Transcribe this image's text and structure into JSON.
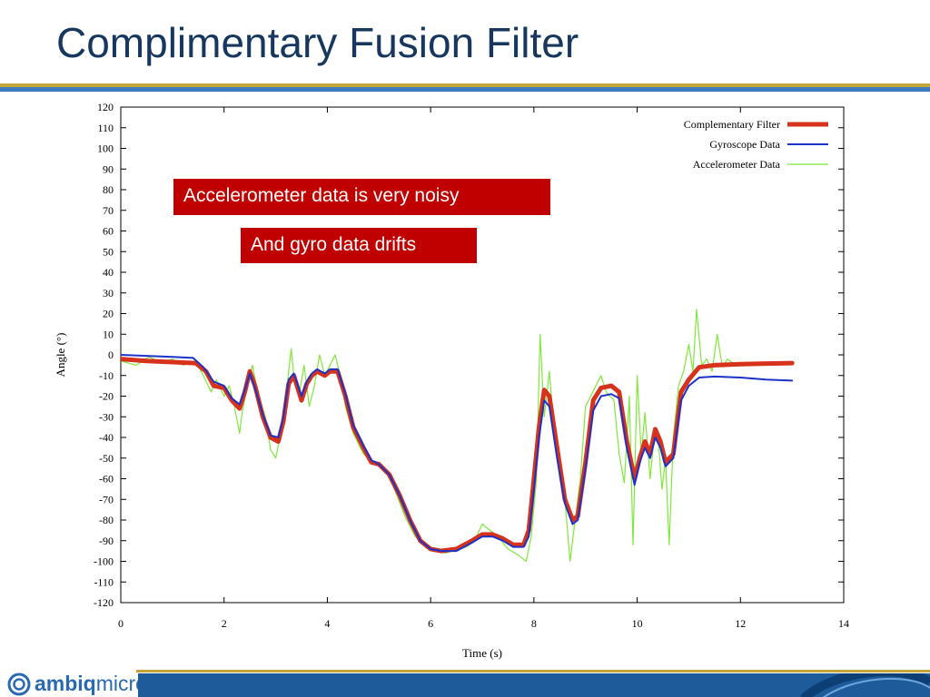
{
  "slide": {
    "title": "Complimentary Fusion Filter",
    "callouts": [
      "Accelerometer data is very noisy",
      "And gyro data drifts"
    ],
    "logo_bold": "ambiq",
    "logo_light": "micro",
    "accent_color": "#17375e",
    "callout_color": "#c00000"
  },
  "chart_data": {
    "type": "line",
    "title": "",
    "xlabel": "Time (s)",
    "ylabel": "Angle (°)",
    "xlim": [
      0,
      14
    ],
    "ylim": [
      -120,
      120
    ],
    "x_ticks": [
      0,
      2,
      4,
      6,
      8,
      10,
      12,
      14
    ],
    "y_ticks": [
      120,
      110,
      100,
      90,
      80,
      70,
      60,
      50,
      40,
      30,
      20,
      10,
      0,
      -10,
      -20,
      -30,
      -40,
      -50,
      -60,
      -70,
      -80,
      -90,
      -100,
      -110,
      -120
    ],
    "legend_position": "top-right",
    "grid": false,
    "series": [
      {
        "name": "Complementary Filter",
        "color": "#d6321c",
        "width": 5,
        "x": [
          0,
          0.5,
          1.0,
          1.45,
          1.65,
          1.8,
          2.0,
          2.15,
          2.3,
          2.4,
          2.5,
          2.6,
          2.75,
          2.9,
          3.05,
          3.15,
          3.25,
          3.35,
          3.5,
          3.6,
          3.7,
          3.8,
          3.95,
          4.05,
          4.2,
          4.35,
          4.5,
          4.7,
          4.85,
          5.0,
          5.2,
          5.4,
          5.6,
          5.8,
          6.0,
          6.2,
          6.5,
          6.8,
          7.0,
          7.2,
          7.4,
          7.6,
          7.8,
          7.9,
          8.0,
          8.1,
          8.2,
          8.3,
          8.45,
          8.6,
          8.75,
          8.85,
          9.0,
          9.15,
          9.3,
          9.5,
          9.65,
          9.8,
          9.95,
          10.05,
          10.15,
          10.25,
          10.35,
          10.45,
          10.55,
          10.7,
          10.85,
          11.0,
          11.2,
          11.5,
          12.0,
          12.5,
          13.0
        ],
        "y": [
          -2,
          -3,
          -3.5,
          -4,
          -8,
          -15,
          -16,
          -22,
          -26,
          -18,
          -8,
          -15,
          -30,
          -40,
          -42,
          -32,
          -14,
          -10,
          -22,
          -14,
          -10,
          -8,
          -10,
          -8,
          -8,
          -20,
          -35,
          -45,
          -52,
          -53,
          -58,
          -68,
          -80,
          -90,
          -94,
          -95,
          -94,
          -90,
          -87,
          -87,
          -89,
          -92,
          -92,
          -85,
          -60,
          -35,
          -17,
          -20,
          -45,
          -70,
          -80,
          -78,
          -52,
          -22,
          -16,
          -15,
          -18,
          -42,
          -60,
          -50,
          -42,
          -48,
          -36,
          -42,
          -52,
          -48,
          -18,
          -12,
          -6,
          -5,
          -4.5,
          -4.2,
          -4
        ]
      },
      {
        "name": "Gyroscope Data",
        "color": "#1c33c8",
        "width": 2,
        "x": [
          0,
          0.5,
          1.0,
          1.4,
          1.6,
          1.8,
          2.0,
          2.15,
          2.3,
          2.4,
          2.5,
          2.6,
          2.75,
          2.9,
          3.05,
          3.15,
          3.25,
          3.35,
          3.5,
          3.6,
          3.7,
          3.8,
          3.95,
          4.05,
          4.2,
          4.35,
          4.5,
          4.7,
          4.85,
          5.0,
          5.2,
          5.4,
          5.6,
          5.8,
          6.0,
          6.2,
          6.5,
          6.8,
          7.0,
          7.2,
          7.4,
          7.6,
          7.8,
          7.9,
          8.0,
          8.1,
          8.2,
          8.3,
          8.45,
          8.6,
          8.75,
          8.85,
          9.0,
          9.15,
          9.3,
          9.5,
          9.65,
          9.8,
          9.95,
          10.05,
          10.15,
          10.25,
          10.35,
          10.45,
          10.55,
          10.7,
          10.85,
          11.0,
          11.2,
          11.5,
          12.0,
          12.5,
          13.0
        ],
        "y": [
          0,
          -0.5,
          -1,
          -1.5,
          -6,
          -13,
          -15,
          -21,
          -24,
          -17,
          -9,
          -16,
          -29,
          -39,
          -40,
          -30,
          -12,
          -9,
          -20,
          -13,
          -9,
          -7,
          -9,
          -7,
          -7,
          -19,
          -34,
          -44,
          -51,
          -53,
          -58,
          -68,
          -80,
          -90,
          -94,
          -95,
          -95,
          -91,
          -88,
          -88,
          -90,
          -93,
          -93,
          -88,
          -65,
          -40,
          -22,
          -25,
          -50,
          -72,
          -82,
          -80,
          -55,
          -27,
          -20,
          -19,
          -21,
          -45,
          -63,
          -52,
          -45,
          -50,
          -40,
          -45,
          -54,
          -50,
          -22,
          -15,
          -11,
          -10.5,
          -11,
          -12,
          -12.5
        ]
      },
      {
        "name": "Accelerometer Data",
        "color": "#7fe83a",
        "width": 1.2,
        "x": [
          0,
          0.3,
          0.55,
          0.8,
          1.0,
          1.2,
          1.45,
          1.6,
          1.75,
          1.85,
          2.0,
          2.1,
          2.2,
          2.3,
          2.35,
          2.45,
          2.55,
          2.65,
          2.8,
          2.9,
          3.0,
          3.1,
          3.2,
          3.3,
          3.35,
          3.45,
          3.55,
          3.65,
          3.75,
          3.85,
          3.95,
          4.05,
          4.15,
          4.25,
          4.35,
          4.5,
          4.7,
          4.9,
          5.1,
          5.3,
          5.5,
          5.7,
          5.9,
          6.1,
          6.3,
          6.5,
          6.7,
          6.85,
          7.0,
          7.15,
          7.3,
          7.5,
          7.7,
          7.85,
          7.95,
          8.05,
          8.12,
          8.2,
          8.3,
          8.4,
          8.5,
          8.6,
          8.7,
          8.8,
          8.9,
          9.0,
          9.1,
          9.2,
          9.3,
          9.4,
          9.55,
          9.65,
          9.75,
          9.85,
          9.92,
          10.0,
          10.08,
          10.15,
          10.25,
          10.32,
          10.4,
          10.48,
          10.55,
          10.62,
          10.7,
          10.8,
          10.9,
          11.0,
          11.08,
          11.15,
          11.25,
          11.35,
          11.45,
          11.55,
          11.65,
          11.75,
          11.85,
          12.0,
          12.3,
          12.6,
          13.0
        ],
        "y": [
          -3,
          -5,
          -1,
          -4,
          -2,
          -5,
          -3,
          -10,
          -18,
          -12,
          -20,
          -15,
          -25,
          -38,
          -28,
          -15,
          -5,
          -18,
          -30,
          -46,
          -50,
          -38,
          -20,
          3,
          -10,
          -20,
          -5,
          -25,
          -15,
          0,
          -10,
          -5,
          0,
          -10,
          -25,
          -38,
          -48,
          -52,
          -55,
          -65,
          -78,
          -88,
          -92,
          -95,
          -96,
          -94,
          -93,
          -90,
          -82,
          -85,
          -88,
          -94,
          -97,
          -100,
          -88,
          -60,
          10,
          -30,
          -8,
          -40,
          -60,
          -70,
          -100,
          -80,
          -60,
          -25,
          -20,
          -15,
          -10,
          -18,
          -22,
          -48,
          -62,
          -20,
          -92,
          -10,
          -48,
          -28,
          -60,
          -42,
          -38,
          -65,
          -50,
          -92,
          -40,
          -15,
          -8,
          5,
          -8,
          22,
          -5,
          -2,
          -8,
          10,
          -6,
          -2,
          -4,
          -5,
          -5,
          -4,
          -4
        ]
      }
    ]
  }
}
